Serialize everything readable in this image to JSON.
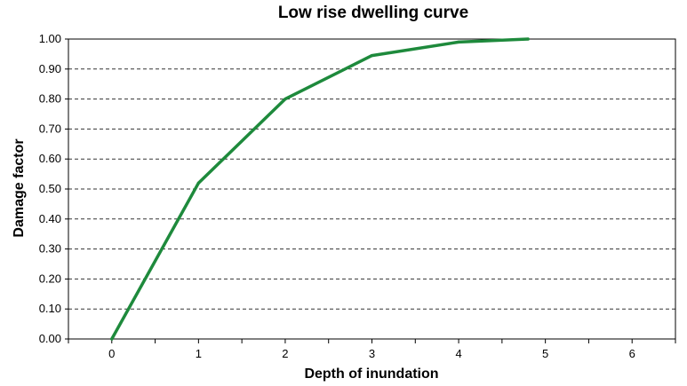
{
  "chart_data": {
    "type": "line",
    "title": "Low rise dwelling curve",
    "xlabel": "Depth of inundation",
    "ylabel": "Damage factor",
    "xlim": [
      -0.5,
      6.5
    ],
    "ylim": [
      0,
      1
    ],
    "x_ticks": [
      "0",
      "1",
      "2",
      "3",
      "4",
      "5",
      "6"
    ],
    "y_ticks": [
      "0.00",
      "0.10",
      "0.20",
      "0.30",
      "0.40",
      "0.50",
      "0.60",
      "0.70",
      "0.80",
      "0.90",
      "1.00"
    ],
    "grid": "horizontal dashed",
    "legend": "none",
    "series": [
      {
        "color": "#1e8a3c",
        "x": [
          0,
          1,
          2,
          3,
          4,
          4.8
        ],
        "y": [
          0.0,
          0.52,
          0.8,
          0.945,
          0.99,
          1.0
        ]
      }
    ]
  }
}
